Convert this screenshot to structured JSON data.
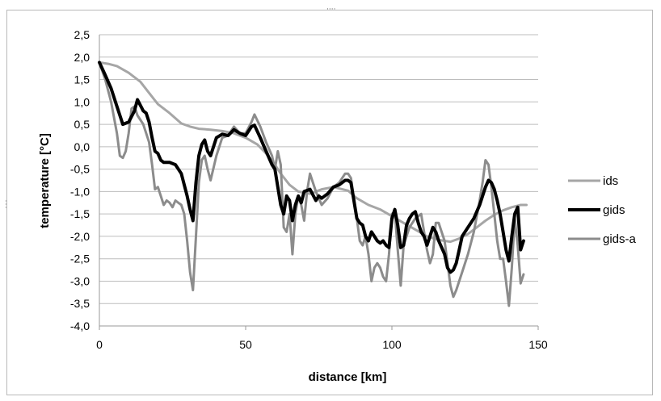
{
  "chart_data": {
    "type": "line",
    "title": "",
    "xlabel": "distance [km]",
    "ylabel": "temperature [°C]",
    "xlim": [
      0,
      150
    ],
    "ylim": [
      -4.0,
      2.5
    ],
    "xticks": [
      "0",
      "50",
      "100",
      "150"
    ],
    "yticks": [
      "2,5",
      "2,0",
      "1,5",
      "1,0",
      "0,5",
      "0,0",
      "-0,5",
      "-1,0",
      "-1,5",
      "-2,0",
      "-2,5",
      "-3,0",
      "-3,5",
      "-4,0"
    ],
    "grid": true,
    "legend_position": "right",
    "series": [
      {
        "name": "ids",
        "color": "#a6a6a6",
        "x": [
          0,
          3,
          6,
          10,
          14,
          17,
          20,
          24,
          28,
          31,
          34,
          38,
          42,
          46,
          50,
          54,
          57,
          60,
          62,
          65,
          68,
          72,
          76,
          80,
          85,
          88,
          92,
          96,
          100,
          104,
          108,
          112,
          116,
          120,
          123,
          126,
          129,
          132,
          135,
          138,
          141,
          144,
          146
        ],
        "y": [
          1.88,
          1.85,
          1.8,
          1.65,
          1.45,
          1.2,
          0.95,
          0.75,
          0.52,
          0.45,
          0.4,
          0.38,
          0.35,
          0.3,
          0.2,
          0.05,
          -0.15,
          -0.4,
          -0.6,
          -0.85,
          -1.0,
          -1.05,
          -0.95,
          -0.9,
          -0.98,
          -1.15,
          -1.3,
          -1.4,
          -1.55,
          -1.7,
          -1.85,
          -2.0,
          -2.08,
          -2.12,
          -2.05,
          -1.95,
          -1.8,
          -1.65,
          -1.52,
          -1.42,
          -1.35,
          -1.3,
          -1.3
        ]
      },
      {
        "name": "gids",
        "color": "#000000",
        "x": [
          0,
          2,
          4,
          6,
          8,
          10,
          12,
          13,
          15,
          16,
          17,
          18,
          19,
          20,
          21,
          22,
          24,
          26,
          28,
          30,
          31,
          32,
          33,
          34,
          35,
          36,
          37,
          38,
          40,
          42,
          44,
          46,
          48,
          50,
          52,
          53,
          55,
          57,
          59,
          60,
          61,
          62,
          63,
          64,
          65,
          66,
          67,
          68,
          69,
          70,
          72,
          74,
          75,
          76,
          78,
          80,
          82,
          84,
          85,
          86,
          88,
          89,
          90,
          91,
          92,
          93,
          94,
          95,
          96,
          97,
          98,
          99,
          100,
          101,
          102,
          103,
          104,
          105,
          106,
          107,
          108,
          109,
          110,
          111,
          112,
          113,
          114,
          115,
          116,
          118,
          119,
          120,
          121,
          122,
          123,
          124,
          126,
          128,
          130,
          131,
          132,
          133,
          134,
          135,
          136,
          137,
          138,
          139,
          140,
          141,
          142,
          143,
          144,
          145
        ],
        "y": [
          1.88,
          1.6,
          1.3,
          0.9,
          0.5,
          0.55,
          0.8,
          1.05,
          0.8,
          0.75,
          0.55,
          0.2,
          -0.1,
          -0.15,
          -0.3,
          -0.35,
          -0.35,
          -0.4,
          -0.6,
          -1.1,
          -1.4,
          -1.65,
          -0.8,
          -0.2,
          0.05,
          0.15,
          -0.1,
          -0.2,
          0.2,
          0.28,
          0.25,
          0.38,
          0.3,
          0.25,
          0.45,
          0.48,
          0.2,
          -0.1,
          -0.4,
          -0.5,
          -0.9,
          -1.3,
          -1.5,
          -1.1,
          -1.2,
          -1.65,
          -1.3,
          -1.1,
          -1.25,
          -1.0,
          -0.95,
          -1.2,
          -1.1,
          -1.15,
          -1.05,
          -0.9,
          -0.85,
          -0.75,
          -0.75,
          -0.8,
          -1.6,
          -1.7,
          -1.75,
          -2.0,
          -2.1,
          -1.9,
          -2.0,
          -2.1,
          -2.15,
          -2.1,
          -2.2,
          -2.25,
          -1.6,
          -1.4,
          -1.75,
          -2.25,
          -2.2,
          -1.75,
          -1.6,
          -1.5,
          -1.45,
          -1.7,
          -1.9,
          -2.0,
          -2.2,
          -2.0,
          -1.8,
          -1.9,
          -2.1,
          -2.4,
          -2.7,
          -2.8,
          -2.75,
          -2.6,
          -2.3,
          -2.0,
          -1.8,
          -1.6,
          -1.3,
          -1.1,
          -0.9,
          -0.75,
          -0.8,
          -0.95,
          -1.2,
          -1.5,
          -1.9,
          -2.3,
          -2.55,
          -2.0,
          -1.5,
          -1.35,
          -2.3,
          -2.1
        ]
      },
      {
        "name": "gids-a",
        "color": "#8c8c8c",
        "x": [
          0,
          2,
          4,
          6,
          7,
          8,
          9,
          10,
          11,
          12,
          13,
          14,
          15,
          16,
          17,
          18,
          19,
          20,
          21,
          22,
          23,
          24,
          25,
          26,
          27,
          28,
          29,
          30,
          31,
          32,
          33,
          34,
          35,
          36,
          37,
          38,
          40,
          42,
          44,
          46,
          48,
          50,
          52,
          53,
          55,
          57,
          59,
          60,
          61,
          62,
          63,
          64,
          65,
          66,
          67,
          68,
          69,
          70,
          71,
          72,
          74,
          76,
          78,
          80,
          82,
          84,
          85,
          86,
          88,
          89,
          90,
          91,
          92,
          93,
          94,
          95,
          96,
          97,
          98,
          99,
          100,
          101,
          102,
          103,
          104,
          106,
          108,
          110,
          111,
          112,
          113,
          114,
          115,
          116,
          117,
          118,
          119,
          120,
          121,
          122,
          124,
          126,
          128,
          130,
          131,
          132,
          133,
          134,
          135,
          136,
          137,
          138,
          139,
          140,
          141,
          142,
          143,
          144,
          145
        ],
        "y": [
          1.88,
          1.5,
          1.0,
          0.3,
          -0.2,
          -0.25,
          -0.1,
          0.3,
          0.85,
          0.9,
          0.7,
          0.6,
          0.5,
          0.3,
          0.1,
          -0.4,
          -0.95,
          -0.9,
          -1.1,
          -1.3,
          -1.2,
          -1.25,
          -1.35,
          -1.2,
          -1.25,
          -1.3,
          -1.5,
          -2.1,
          -2.8,
          -3.2,
          -2.0,
          -0.8,
          -0.3,
          -0.2,
          -0.5,
          -0.75,
          -0.2,
          0.2,
          0.25,
          0.45,
          0.3,
          0.3,
          0.55,
          0.72,
          0.45,
          0.1,
          -0.2,
          -0.5,
          -0.1,
          -0.4,
          -1.8,
          -1.9,
          -1.5,
          -2.4,
          -1.5,
          -1.1,
          -1.3,
          -1.65,
          -1.0,
          -0.6,
          -1.0,
          -1.3,
          -1.15,
          -0.9,
          -0.8,
          -0.6,
          -0.6,
          -0.7,
          -1.6,
          -2.1,
          -2.2,
          -2.0,
          -2.4,
          -3.0,
          -2.7,
          -2.6,
          -2.7,
          -2.9,
          -3.0,
          -2.4,
          -1.5,
          -1.45,
          -2.3,
          -3.1,
          -2.2,
          -1.8,
          -1.6,
          -1.5,
          -1.9,
          -2.3,
          -2.6,
          -2.4,
          -1.7,
          -1.7,
          -1.9,
          -2.1,
          -2.6,
          -3.1,
          -3.35,
          -3.2,
          -2.8,
          -2.4,
          -1.9,
          -1.2,
          -0.8,
          -0.3,
          -0.4,
          -0.9,
          -1.5,
          -2.1,
          -2.5,
          -2.5,
          -3.0,
          -3.55,
          -2.7,
          -1.6,
          -2.2,
          -3.05,
          -2.85
        ]
      }
    ]
  }
}
